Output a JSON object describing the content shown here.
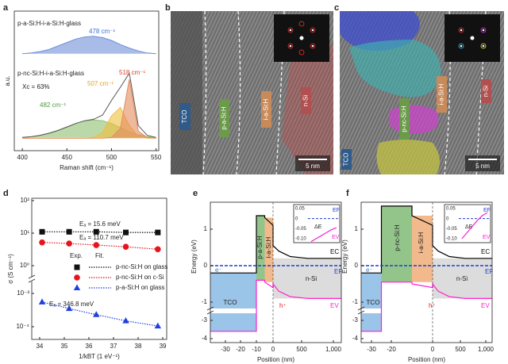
{
  "panel_labels": [
    "a",
    "b",
    "c",
    "d",
    "e",
    "f"
  ],
  "images": [
    {
      "labels": [
        "TCO",
        "p-a-Si:H",
        "i-a-Si:H",
        "n-Si"
      ],
      "scale_bar": "5 nm"
    },
    {
      "labels": [
        "TCO",
        "p-nc-Si:H",
        "i-a-Si:H",
        "n-Si"
      ],
      "scale_bar": "5 nm"
    }
  ],
  "chart_data": [
    {
      "type": "line",
      "xlabel": "Raman shift (cm⁻¹)",
      "ylabel": "a.u.",
      "x": [
        400,
        410,
        420,
        430,
        440,
        450,
        460,
        470,
        480,
        490,
        500,
        510,
        520,
        530,
        540,
        550
      ],
      "xlim": [
        391,
        553
      ],
      "xticks": [
        400,
        450,
        500,
        550
      ],
      "ylim": [
        0,
        10
      ],
      "series": [
        {
          "color": "#6f8fd8",
          "fill": true,
          "values": [
            6.95,
            7.0,
            7.1,
            7.25,
            7.5,
            7.75,
            8.0,
            8.15,
            8.2,
            8.1,
            7.9,
            7.6,
            7.35,
            7.15,
            7.0,
            6.95
          ]
        },
        {
          "color": "#8dbf6e",
          "fill": true,
          "values": [
            0.95,
            1.0,
            1.1,
            1.25,
            1.45,
            1.7,
            1.95,
            2.15,
            2.2,
            2.15,
            1.95,
            1.65,
            1.35,
            1.15,
            1.0,
            0.95
          ]
        },
        {
          "color": "#f0be3c",
          "fill": true,
          "values": [
            0.9,
            0.9,
            0.9,
            0.9,
            0.9,
            0.9,
            0.9,
            0.9,
            0.95,
            1.3,
            2.5,
            3.1,
            1.8,
            1.05,
            0.9,
            0.9
          ]
        },
        {
          "color": "#e58a5e",
          "fill": true,
          "values": [
            0.9,
            0.9,
            0.9,
            0.9,
            0.9,
            0.9,
            0.9,
            0.9,
            0.9,
            0.9,
            0.95,
            1.6,
            5.1,
            1.4,
            0.95,
            0.9
          ]
        },
        {
          "color": "#555555",
          "fill": false,
          "values": [
            0.95,
            1.0,
            1.1,
            1.25,
            1.45,
            1.7,
            1.95,
            2.15,
            2.25,
            2.55,
            3.6,
            4.55,
            5.55,
            1.8,
            1.1,
            0.95
          ]
        }
      ],
      "annotations": [
        {
          "text": "p-a-Si:H-i-a-Si:H-glass",
          "color": "#222222"
        },
        {
          "text": "478 cm⁻¹",
          "color": "#3b6fd6"
        },
        {
          "text": "p-nc-Si:H-i-a-Si:H-glass",
          "color": "#222222"
        },
        {
          "text": "Xc = 63%",
          "color": "#222222"
        },
        {
          "text": "518 cm⁻¹",
          "color": "#d9452b"
        },
        {
          "text": "507 cm⁻¹",
          "color": "#e8a317"
        },
        {
          "text": "482 cm⁻¹",
          "color": "#4e9a3c"
        }
      ]
    },
    {
      "type": "scatter",
      "log_y": true,
      "xlabel": "1/kBT (1 eV⁻¹)",
      "ylabel": "σ (S cm⁻¹)",
      "x": [
        34.1,
        35.2,
        36.3,
        37.5,
        38.8
      ],
      "xlim": [
        33.68,
        39.16
      ],
      "xticks": [
        34,
        35,
        36,
        37,
        38,
        39
      ],
      "ylim": [
        8e-05,
        150
      ],
      "yticks": [
        {
          "value": 100,
          "label": "10²"
        },
        {
          "value": 10,
          "label": "10¹"
        },
        {
          "value": 1,
          "label": "10⁰"
        },
        {
          "value": 0.001,
          "label": "10⁻³"
        },
        {
          "value": 0.0001,
          "label": "10⁻⁴"
        }
      ],
      "legend_headers": [
        "Exp.",
        "Fit."
      ],
      "series": [
        {
          "name": "p-nc-Si:H on glass",
          "color": "#111111",
          "marker": "square",
          "values": [
            11,
            11,
            11,
            10.5,
            10.5
          ]
        },
        {
          "name": "p-nc-Si:H on c-Si",
          "color": "#e8141c",
          "marker": "circle",
          "values": [
            5.2,
            4.8,
            4.3,
            3.8,
            3.2
          ]
        },
        {
          "name": "p-a-Si:H on glass",
          "color": "#1f3fe0",
          "marker": "triangle",
          "values": [
            0.00055,
            0.00035,
            0.00023,
            0.00015,
            0.000105
          ]
        }
      ],
      "annotations": [
        "Eₐ = 15.6 meV",
        "Eₐ = 110.7 meV",
        "Eₐ = 346.8 meV"
      ]
    },
    {
      "type": "band",
      "xlabel": "Position (nm)",
      "ylabel": "Energy (eV)",
      "xlim": [
        -40,
        1100
      ],
      "xticks": [
        -30,
        -20,
        -10,
        0,
        500,
        {
          "value": 1000,
          "label": "1,000"
        }
      ],
      "ylim": [
        -4.2,
        1.7
      ],
      "yticks": [
        1,
        0,
        -1,
        -3,
        -4
      ],
      "regions": [
        {
          "label": "TCO",
          "color": "#9ac4e8",
          "x": [
            -40,
            -10
          ],
          "y": [
            -0.2,
            -3.6
          ]
        },
        {
          "label": "p-a-Si:H",
          "color": "#93c58a",
          "x": [
            -10,
            -5
          ],
          "y": [
            1.35,
            -0.4
          ]
        },
        {
          "label": "i-a-Si:H",
          "color": "#f2b98c",
          "x": [
            -5,
            0
          ],
          "y": [
            1.3,
            -0.45
          ]
        },
        {
          "label": "n-Si",
          "color": "#dcdcdc",
          "x": [
            0,
            1100
          ],
          "y": [
            0.2,
            -0.9
          ]
        }
      ],
      "series": [
        {
          "name": "EC",
          "color": "#000000",
          "x": [
            -40,
            -10,
            -10,
            -5,
            -5,
            0,
            0,
            100,
            300,
            600,
            1100
          ],
          "values": [
            -0.2,
            -0.2,
            1.35,
            1.35,
            1.3,
            1.1,
            0.55,
            0.4,
            0.25,
            0.2,
            0.2
          ]
        },
        {
          "name": "EV",
          "color": "#ff1fd0",
          "x": [
            -40,
            -10,
            -10,
            -5,
            -5,
            0,
            0,
            100,
            300,
            600,
            1100
          ],
          "values": [
            -3.6,
            -3.6,
            -0.4,
            -0.4,
            -0.45,
            -0.6,
            -0.5,
            -0.7,
            -0.85,
            -0.9,
            -0.9
          ]
        },
        {
          "name": "EF",
          "color": "#1f3fd0",
          "dash": true,
          "x": [
            -40,
            1100
          ],
          "values": [
            0,
            0
          ]
        }
      ],
      "carriers": [
        {
          "text": "e⁻",
          "color": "#3a7fd0"
        },
        {
          "text": "h⁺",
          "color": "#e8141c"
        }
      ],
      "inset": {
        "ylim": [
          -0.12,
          0.07
        ],
        "yticks": [
          0.05,
          0,
          -0.05,
          {
            "value": -0.1,
            "label": "-0.10"
          }
        ],
        "values": [
          -0.115,
          -0.1,
          -0.085,
          -0.07,
          -0.055,
          -0.045
        ],
        "labels": [
          "EF",
          "ΔE",
          "EV"
        ]
      }
    },
    {
      "type": "band",
      "xlabel": "Position (nm)",
      "ylabel": "Energy (eV)",
      "xlim": [
        -35,
        1100
      ],
      "xticks": [
        -30,
        -20,
        0,
        500,
        {
          "value": 1000,
          "label": "1,000"
        }
      ],
      "ylim": [
        -4.2,
        1.7
      ],
      "yticks": [
        1,
        0,
        -1,
        -3,
        -4
      ],
      "regions": [
        {
          "label": "TCO",
          "color": "#9ac4e8",
          "x": [
            -35,
            -25
          ],
          "y": [
            -0.2,
            -3.6
          ]
        },
        {
          "label": "p-nc-Si:H",
          "color": "#93c58a",
          "x": [
            -25,
            -10
          ],
          "y": [
            1.6,
            -0.45
          ]
        },
        {
          "label": "i-a-Si:H",
          "color": "#f2b98c",
          "x": [
            -10,
            0
          ],
          "y": [
            1.35,
            -0.45
          ]
        },
        {
          "label": "n-Si",
          "color": "#dcdcdc",
          "x": [
            0,
            1100
          ],
          "y": [
            0.2,
            -0.9
          ]
        }
      ],
      "series": [
        {
          "name": "EC",
          "color": "#000000",
          "x": [
            -35,
            -25,
            -25,
            -10,
            -10,
            0,
            0,
            100,
            300,
            600,
            1100
          ],
          "values": [
            -0.2,
            -0.2,
            1.6,
            1.6,
            1.35,
            1.1,
            0.55,
            0.4,
            0.25,
            0.2,
            0.2
          ]
        },
        {
          "name": "EV",
          "color": "#ff1fd0",
          "x": [
            -35,
            -25,
            -25,
            -10,
            -10,
            0,
            0,
            100,
            300,
            600,
            1100
          ],
          "values": [
            -3.6,
            -3.6,
            -0.45,
            -0.45,
            -0.5,
            -0.6,
            -0.5,
            -0.7,
            -0.85,
            -0.9,
            -0.9
          ]
        },
        {
          "name": "EF",
          "color": "#1f3fd0",
          "dash": true,
          "x": [
            -35,
            1100
          ],
          "values": [
            0,
            0
          ]
        }
      ],
      "carriers": [
        {
          "text": "e⁻",
          "color": "#3a7fd0"
        },
        {
          "text": "h⁺",
          "color": "#e8141c"
        }
      ],
      "inset": {
        "ylim": [
          -0.12,
          0.07
        ],
        "yticks": [
          0.05,
          0,
          -0.05,
          {
            "value": -0.1,
            "label": "-0.10"
          }
        ],
        "values": [
          -0.1,
          -0.07,
          -0.04,
          -0.01,
          0.015,
          0.03
        ],
        "labels": [
          "EF",
          "ΔE",
          "EV"
        ]
      }
    }
  ]
}
